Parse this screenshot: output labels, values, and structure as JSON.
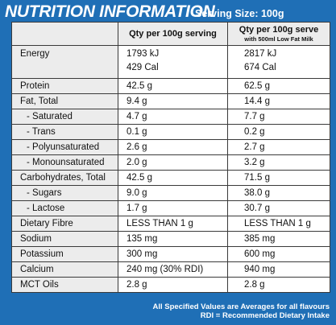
{
  "header": {
    "title": "NUTRITION INFORMATION",
    "serving": "Serving Size: 100g"
  },
  "columns": {
    "col1": "Qty per 100g serving",
    "col2": "Qty per 100g serve",
    "col2_sub": "with 500ml Low Fat Milk"
  },
  "rows": [
    {
      "label": "Energy",
      "v1a": "1793 kJ",
      "v1b": "429 Cal",
      "v2a": "2817 kJ",
      "v2b": "674 Cal"
    },
    {
      "label": "Protein",
      "v1": "42.5 g",
      "v2": "62.5 g"
    },
    {
      "label": "Fat, Total",
      "v1": "9.4 g",
      "v2": "14.4 g"
    },
    {
      "label": "- Saturated",
      "v1": "4.7 g",
      "v2": "7.7 g"
    },
    {
      "label": "- Trans",
      "v1": "0.1 g",
      "v2": "0.2 g"
    },
    {
      "label": "- Polyunsaturated",
      "v1": "2.6 g",
      "v2": "2.7 g"
    },
    {
      "label": "- Monounsaturated",
      "v1": "2.0 g",
      "v2": "3.2 g"
    },
    {
      "label": "Carbohydrates, Total",
      "v1": "42.5 g",
      "v2": "71.5 g"
    },
    {
      "label": "- Sugars",
      "v1": "9.0 g",
      "v2": "38.0 g"
    },
    {
      "label": "- Lactose",
      "v1": "1.7 g",
      "v2": "30.7 g"
    },
    {
      "label": "Dietary Fibre",
      "v1": "LESS THAN 1 g",
      "v2": "LESS THAN 1 g"
    },
    {
      "label": "Sodium",
      "v1": "135 mg",
      "v2": "385 mg"
    },
    {
      "label": "Potassium",
      "v1": "300 mg",
      "v2": "600 mg"
    },
    {
      "label": "Calcium",
      "v1": "240 mg (30% RDI)",
      "v2": "940 mg"
    },
    {
      "label": "MCT Oils",
      "v1": "2.8 g",
      "v2": "2.8 g"
    }
  ],
  "footer": {
    "line1": "All Specified Values are Averages for all flavours",
    "line2": "RDI = Recommended Dietary Intake"
  },
  "colors": {
    "background": "#1f6fb6",
    "label_cell": "#ececec",
    "value_cell": "#ffffff"
  }
}
